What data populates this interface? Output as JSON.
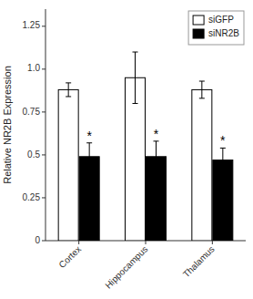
{
  "chart_data": {
    "type": "bar",
    "ylabel": "Relative NR2B Expression",
    "categories": [
      "Cortex",
      "Hippocampus",
      "Thalamus"
    ],
    "series": [
      {
        "name": "siGFP",
        "color": "#ffffff",
        "values": [
          0.88,
          0.95,
          0.88
        ],
        "errors": [
          0.04,
          0.15,
          0.05
        ]
      },
      {
        "name": "siNR2B",
        "color": "#000000",
        "values": [
          0.49,
          0.49,
          0.47
        ],
        "errors": [
          0.08,
          0.09,
          0.07
        ]
      }
    ],
    "edge_color": "#000000",
    "ylim": [
      0,
      1.35
    ],
    "yticks": [
      0,
      0.25,
      0.5,
      0.75,
      {
        "value": 1.0,
        "label": "1.0"
      },
      1.25
    ],
    "legend": "upper right",
    "annotations": [
      {
        "text": "*",
        "category": "Cortex",
        "series": "siNR2B"
      },
      {
        "text": "*",
        "category": "Hippocampus",
        "series": "siNR2B"
      },
      {
        "text": "*",
        "category": "Thalamus",
        "series": "siNR2B"
      }
    ]
  }
}
